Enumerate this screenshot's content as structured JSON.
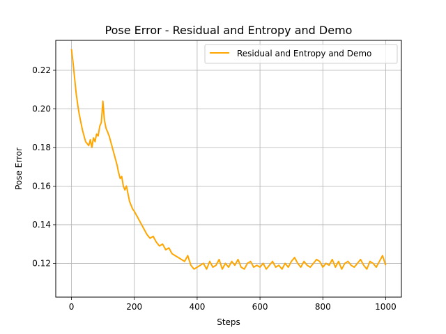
{
  "chart_data": {
    "type": "line",
    "title": "Pose Error - Residual and Entropy and Demo",
    "xlabel": "Steps",
    "ylabel": "Pose Error",
    "xlim": [
      -50,
      1050
    ],
    "ylim": [
      0.1025,
      0.2355
    ],
    "xticks": [
      0,
      200,
      400,
      600,
      800,
      1000
    ],
    "yticks": [
      0.12,
      0.14,
      0.16,
      0.18,
      0.2,
      0.22
    ],
    "xtick_labels": [
      "0",
      "200",
      "400",
      "600",
      "800",
      "1000"
    ],
    "ytick_labels": [
      "0.12",
      "0.14",
      "0.16",
      "0.18",
      "0.20",
      "0.22"
    ],
    "grid": true,
    "legend_position": "upper right",
    "series": [
      {
        "name": "Residual and Entropy and Demo",
        "color": "#FFA500",
        "x": [
          0,
          5,
          10,
          15,
          20,
          25,
          30,
          35,
          40,
          45,
          50,
          55,
          60,
          65,
          70,
          75,
          80,
          85,
          90,
          95,
          100,
          105,
          110,
          115,
          120,
          125,
          130,
          135,
          140,
          145,
          150,
          155,
          160,
          165,
          170,
          175,
          180,
          185,
          190,
          195,
          200,
          210,
          220,
          230,
          240,
          250,
          260,
          270,
          280,
          290,
          300,
          310,
          320,
          330,
          340,
          350,
          360,
          370,
          380,
          390,
          400,
          410,
          420,
          430,
          440,
          450,
          460,
          470,
          480,
          490,
          500,
          510,
          520,
          530,
          540,
          550,
          560,
          570,
          580,
          590,
          600,
          610,
          620,
          630,
          640,
          650,
          660,
          670,
          680,
          690,
          700,
          710,
          720,
          730,
          740,
          750,
          760,
          770,
          780,
          790,
          800,
          810,
          820,
          830,
          840,
          850,
          860,
          870,
          880,
          890,
          900,
          910,
          920,
          930,
          940,
          950,
          960,
          970,
          980,
          990,
          1000
        ],
        "values": [
          0.231,
          0.224,
          0.216,
          0.208,
          0.202,
          0.197,
          0.193,
          0.189,
          0.186,
          0.183,
          0.182,
          0.181,
          0.184,
          0.18,
          0.185,
          0.183,
          0.187,
          0.186,
          0.191,
          0.193,
          0.204,
          0.194,
          0.19,
          0.188,
          0.186,
          0.183,
          0.18,
          0.177,
          0.174,
          0.171,
          0.167,
          0.164,
          0.165,
          0.16,
          0.158,
          0.16,
          0.156,
          0.152,
          0.15,
          0.148,
          0.147,
          0.144,
          0.141,
          0.138,
          0.135,
          0.133,
          0.134,
          0.131,
          0.129,
          0.13,
          0.127,
          0.128,
          0.125,
          0.124,
          0.123,
          0.122,
          0.121,
          0.124,
          0.119,
          0.117,
          0.118,
          0.119,
          0.12,
          0.117,
          0.121,
          0.118,
          0.119,
          0.122,
          0.117,
          0.12,
          0.118,
          0.121,
          0.119,
          0.122,
          0.118,
          0.117,
          0.12,
          0.121,
          0.118,
          0.119,
          0.118,
          0.12,
          0.117,
          0.119,
          0.121,
          0.118,
          0.119,
          0.117,
          0.12,
          0.118,
          0.121,
          0.123,
          0.12,
          0.118,
          0.121,
          0.119,
          0.118,
          0.12,
          0.122,
          0.121,
          0.118,
          0.12,
          0.119,
          0.122,
          0.118,
          0.121,
          0.117,
          0.12,
          0.121,
          0.119,
          0.118,
          0.12,
          0.122,
          0.119,
          0.117,
          0.121,
          0.12,
          0.118,
          0.121,
          0.124,
          0.119
        ]
      }
    ]
  }
}
